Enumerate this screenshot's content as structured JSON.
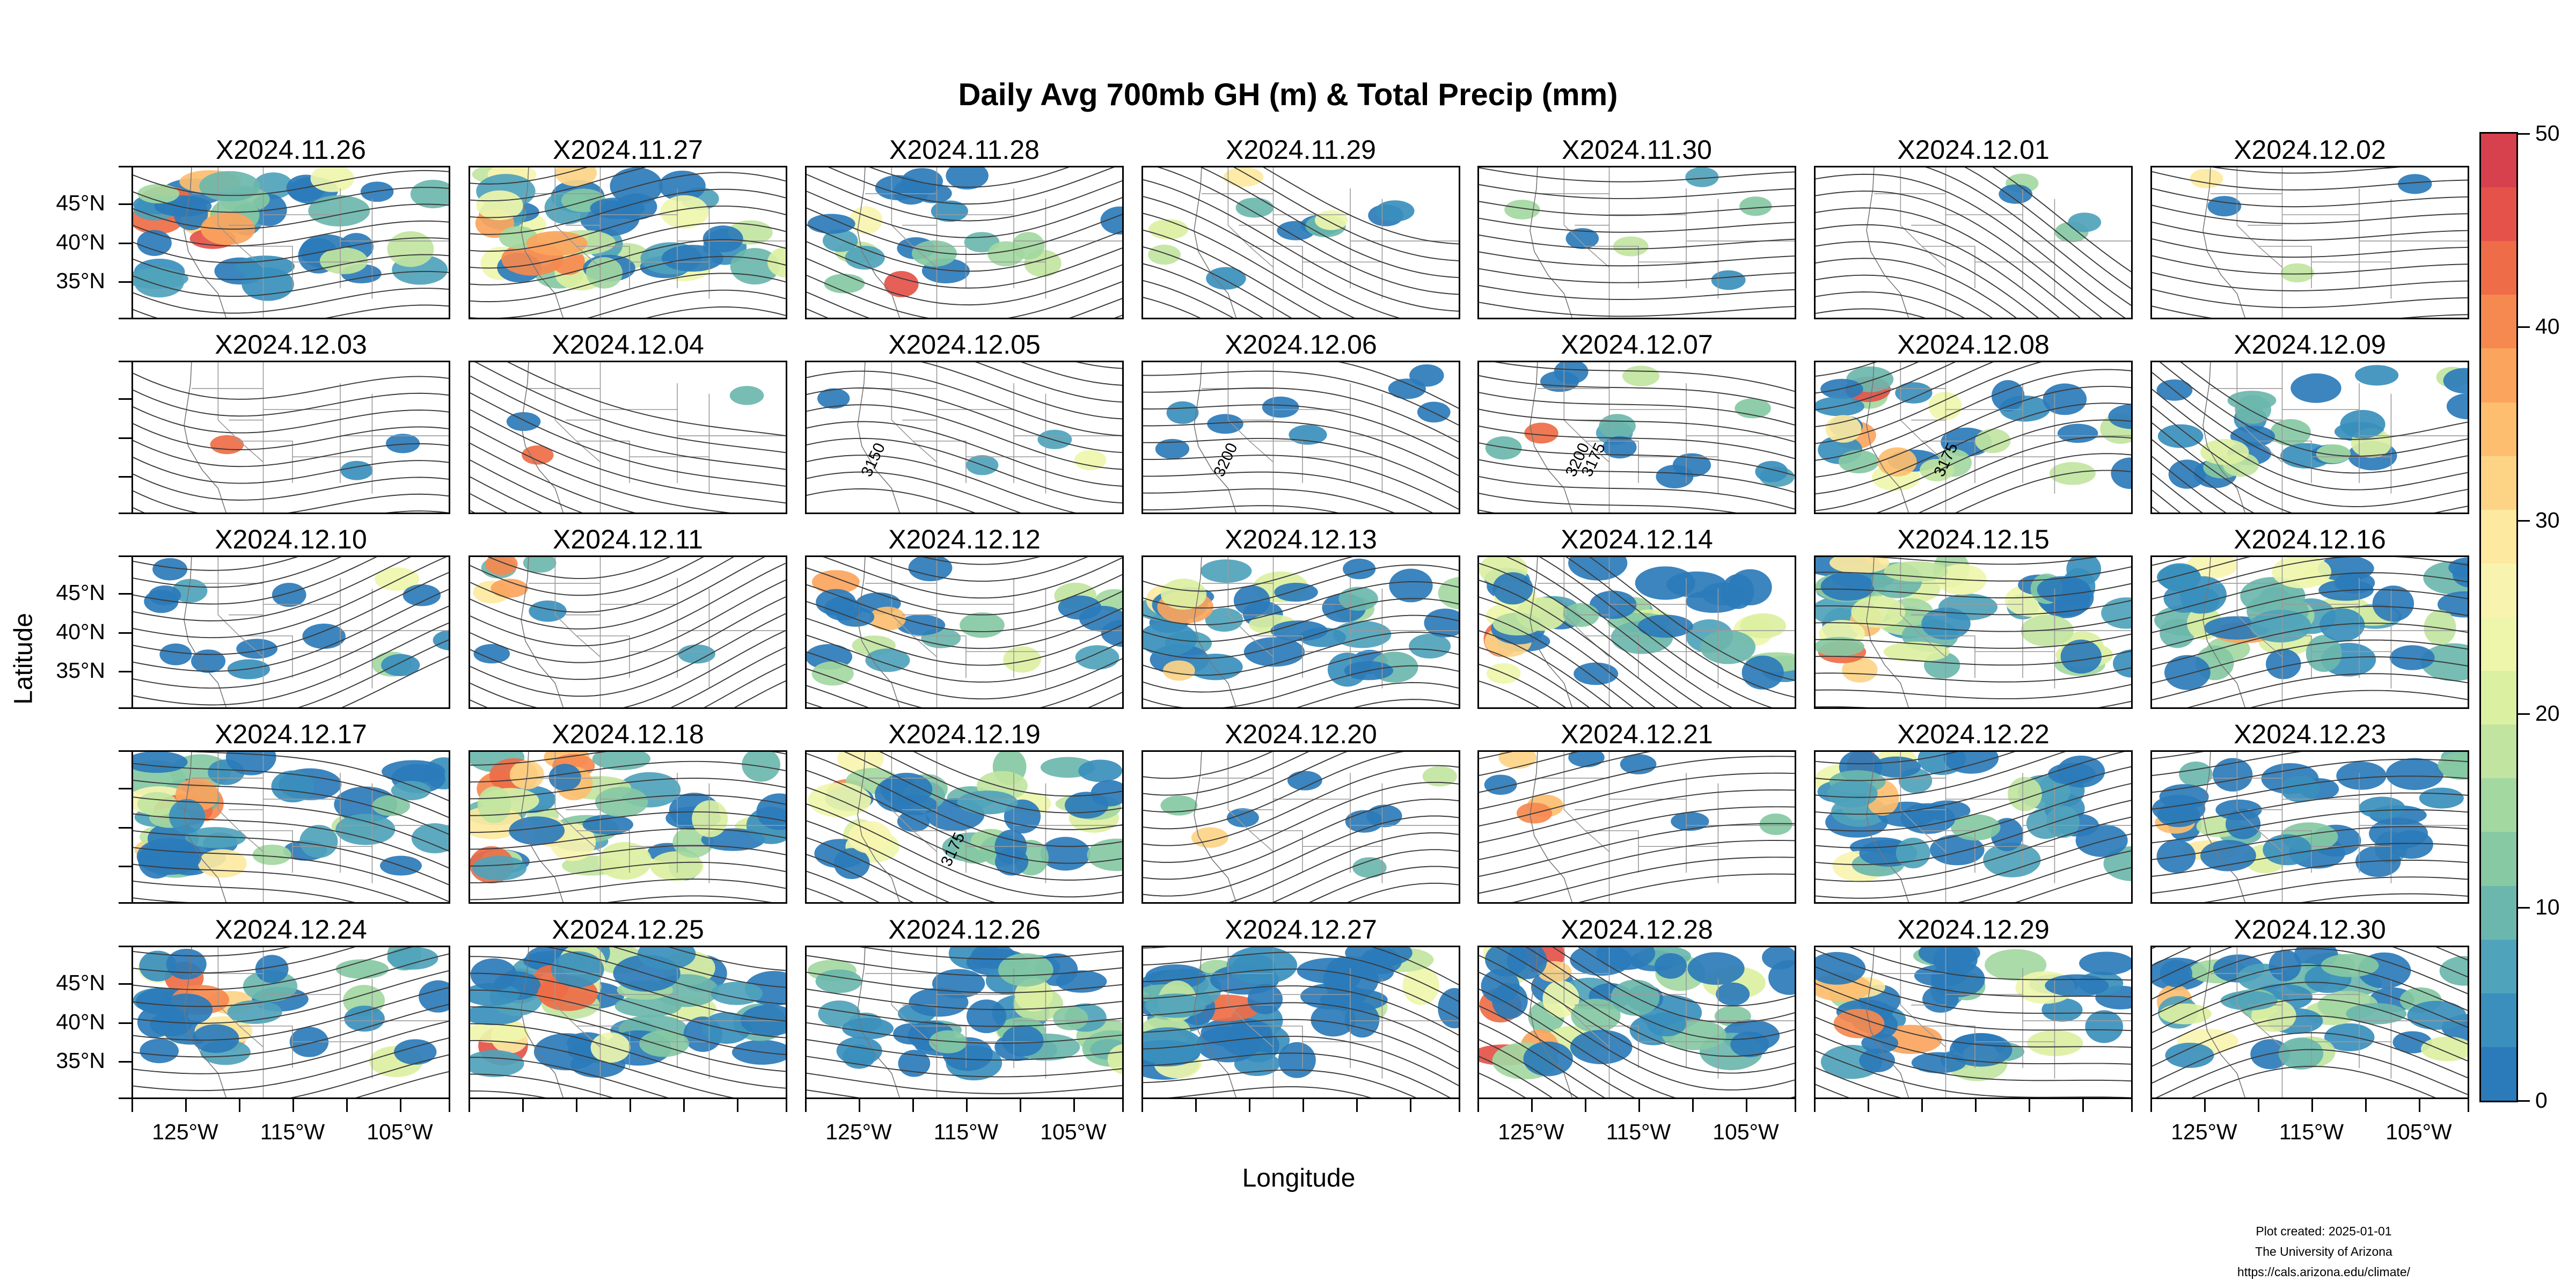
{
  "title": "Daily Avg 700mb GH (m) & Total Precip (mm)",
  "x_axis_label": "Longitude",
  "y_axis_label": "Latitude",
  "lat_tick_labels": [
    "45°N",
    "40°N",
    "35°N"
  ],
  "lon_tick_labels": [
    "125°W",
    "115°W",
    "105°W"
  ],
  "panels": [
    "X2024.11.26",
    "X2024.11.27",
    "X2024.11.28",
    "X2024.11.29",
    "X2024.11.30",
    "X2024.12.01",
    "X2024.12.02",
    "X2024.12.03",
    "X2024.12.04",
    "X2024.12.05",
    "X2024.12.06",
    "X2024.12.07",
    "X2024.12.08",
    "X2024.12.09",
    "X2024.12.10",
    "X2024.12.11",
    "X2024.12.12",
    "X2024.12.13",
    "X2024.12.14",
    "X2024.12.15",
    "X2024.12.16",
    "X2024.12.17",
    "X2024.12.18",
    "X2024.12.19",
    "X2024.12.20",
    "X2024.12.21",
    "X2024.12.22",
    "X2024.12.23",
    "X2024.12.24",
    "X2024.12.25",
    "X2024.12.26",
    "X2024.12.27",
    "X2024.12.28",
    "X2024.12.29",
    "X2024.12.30"
  ],
  "panel_precip_coverage": [
    0.55,
    0.6,
    0.3,
    0.15,
    0.08,
    0.05,
    0.05,
    0.04,
    0.04,
    0.05,
    0.12,
    0.18,
    0.4,
    0.35,
    0.22,
    0.12,
    0.3,
    0.5,
    0.55,
    0.65,
    0.6,
    0.6,
    0.6,
    0.55,
    0.12,
    0.12,
    0.55,
    0.5,
    0.45,
    0.65,
    0.6,
    0.7,
    0.6,
    0.55,
    0.55
  ],
  "contour_labels": [
    {
      "panel": 9,
      "text": "3150"
    },
    {
      "panel": 10,
      "text": "3200"
    },
    {
      "panel": 11,
      "text": "3200"
    },
    {
      "panel": 11,
      "text": "3175"
    },
    {
      "panel": 12,
      "text": "3175"
    },
    {
      "panel": 23,
      "text": "3175"
    }
  ],
  "colorbar": {
    "min": 0,
    "max": 50,
    "tick_labels": [
      "50",
      "40",
      "30",
      "20",
      "10",
      "0"
    ],
    "colors": [
      "#2b7bba",
      "#3a8fbd",
      "#4fa3bb",
      "#6bb7ad",
      "#86c9a3",
      "#a3d8a1",
      "#c1e5a0",
      "#dcf0a2",
      "#eef6ab",
      "#f8f4b0",
      "#fde9a0",
      "#fdd486",
      "#fdbe6f",
      "#fba45d",
      "#f6894f",
      "#ee6c47",
      "#e4524a",
      "#d7414d"
    ]
  },
  "credits": {
    "line1": "Plot created: 2025-01-01",
    "line2": "The University of Arizona",
    "line3": "https://cals.arizona.edu/climate/"
  }
}
